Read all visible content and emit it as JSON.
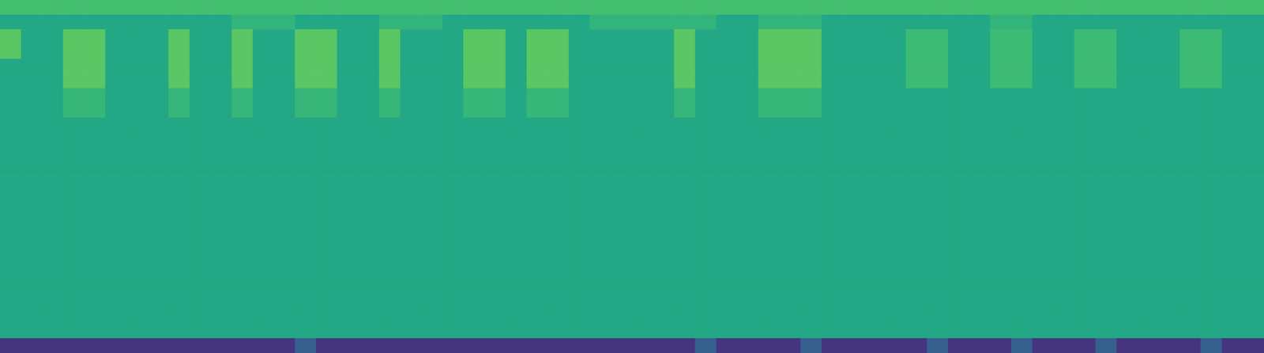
{
  "chart_data": {
    "type": "heatmap",
    "tick_labels": false,
    "zlim": [
      0,
      1
    ],
    "z": [
      [
        0.7,
        0.7,
        0.7,
        0.7,
        0.7,
        0.7,
        0.7,
        0.7,
        0.7,
        0.7,
        0.7,
        0.7,
        0.7,
        0.7,
        0.7,
        0.7,
        0.7,
        0.7,
        0.7,
        0.7,
        0.7,
        0.7,
        0.7,
        0.7,
        0.7,
        0.7,
        0.7,
        0.7,
        0.7,
        0.7,
        0.7,
        0.7,
        0.7,
        0.7,
        0.7,
        0.7,
        0.7,
        0.7,
        0.7,
        0.7,
        0.7,
        0.7,
        0.7,
        0.7,
        0.7,
        0.7,
        0.7,
        0.7,
        0.7,
        0.7,
        0.7,
        0.7,
        0.7,
        0.7,
        0.7,
        0.7,
        0.7,
        0.7,
        0.7,
        0.7
      ],
      [
        0.6,
        0.6,
        0.6,
        0.6,
        0.6,
        0.6,
        0.6,
        0.6,
        0.6,
        0.6,
        0.6,
        0.65,
        0.65,
        0.65,
        0.6,
        0.6,
        0.6,
        0.6,
        0.65,
        0.65,
        0.65,
        0.6,
        0.6,
        0.6,
        0.6,
        0.6,
        0.6,
        0.6,
        0.65,
        0.65,
        0.65,
        0.65,
        0.65,
        0.65,
        0.6,
        0.6,
        0.65,
        0.65,
        0.65,
        0.6,
        0.6,
        0.6,
        0.6,
        0.6,
        0.6,
        0.6,
        0.6,
        0.65,
        0.65,
        0.6,
        0.6,
        0.6,
        0.6,
        0.6,
        0.6,
        0.6,
        0.6,
        0.6,
        0.6,
        0.6
      ],
      [
        0.74,
        0.6,
        0.6,
        0.74,
        0.74,
        0.6,
        0.6,
        0.6,
        0.74,
        0.6,
        0.6,
        0.74,
        0.6,
        0.6,
        0.74,
        0.74,
        0.6,
        0.6,
        0.74,
        0.6,
        0.6,
        0.6,
        0.74,
        0.74,
        0.6,
        0.74,
        0.74,
        0.6,
        0.6,
        0.6,
        0.6,
        0.6,
        0.74,
        0.6,
        0.6,
        0.6,
        0.74,
        0.74,
        0.74,
        0.6,
        0.6,
        0.6,
        0.6,
        0.68,
        0.68,
        0.6,
        0.6,
        0.68,
        0.68,
        0.6,
        0.6,
        0.68,
        0.68,
        0.6,
        0.6,
        0.6,
        0.68,
        0.68,
        0.6,
        0.6
      ],
      [
        0.74,
        0.6,
        0.6,
        0.74,
        0.74,
        0.6,
        0.6,
        0.6,
        0.74,
        0.6,
        0.6,
        0.74,
        0.6,
        0.6,
        0.74,
        0.74,
        0.6,
        0.6,
        0.74,
        0.6,
        0.6,
        0.6,
        0.74,
        0.74,
        0.6,
        0.74,
        0.74,
        0.6,
        0.6,
        0.6,
        0.6,
        0.6,
        0.74,
        0.6,
        0.6,
        0.6,
        0.74,
        0.74,
        0.74,
        0.6,
        0.6,
        0.6,
        0.6,
        0.68,
        0.68,
        0.6,
        0.6,
        0.68,
        0.68,
        0.6,
        0.6,
        0.68,
        0.68,
        0.6,
        0.6,
        0.6,
        0.68,
        0.68,
        0.6,
        0.6
      ],
      [
        0.6,
        0.6,
        0.6,
        0.74,
        0.74,
        0.6,
        0.6,
        0.6,
        0.74,
        0.6,
        0.6,
        0.74,
        0.6,
        0.6,
        0.74,
        0.74,
        0.6,
        0.6,
        0.74,
        0.6,
        0.6,
        0.6,
        0.74,
        0.74,
        0.6,
        0.74,
        0.74,
        0.6,
        0.6,
        0.6,
        0.6,
        0.6,
        0.74,
        0.6,
        0.6,
        0.6,
        0.74,
        0.74,
        0.74,
        0.6,
        0.6,
        0.6,
        0.6,
        0.68,
        0.68,
        0.6,
        0.6,
        0.68,
        0.68,
        0.6,
        0.6,
        0.68,
        0.68,
        0.6,
        0.6,
        0.6,
        0.68,
        0.68,
        0.6,
        0.6
      ],
      [
        0.6,
        0.6,
        0.6,
        0.74,
        0.74,
        0.6,
        0.6,
        0.6,
        0.74,
        0.6,
        0.6,
        0.74,
        0.6,
        0.6,
        0.74,
        0.74,
        0.6,
        0.6,
        0.74,
        0.6,
        0.6,
        0.6,
        0.74,
        0.74,
        0.6,
        0.74,
        0.74,
        0.6,
        0.6,
        0.6,
        0.6,
        0.6,
        0.74,
        0.6,
        0.6,
        0.6,
        0.74,
        0.74,
        0.74,
        0.6,
        0.6,
        0.6,
        0.6,
        0.68,
        0.68,
        0.6,
        0.6,
        0.68,
        0.68,
        0.6,
        0.6,
        0.68,
        0.68,
        0.6,
        0.6,
        0.6,
        0.68,
        0.68,
        0.6,
        0.6
      ],
      [
        0.6,
        0.6,
        0.6,
        0.66,
        0.66,
        0.6,
        0.6,
        0.6,
        0.66,
        0.6,
        0.6,
        0.66,
        0.6,
        0.6,
        0.66,
        0.66,
        0.6,
        0.6,
        0.66,
        0.6,
        0.6,
        0.6,
        0.66,
        0.66,
        0.6,
        0.66,
        0.66,
        0.6,
        0.6,
        0.6,
        0.6,
        0.6,
        0.66,
        0.6,
        0.6,
        0.6,
        0.66,
        0.66,
        0.66,
        0.6,
        0.6,
        0.6,
        0.6,
        0.6,
        0.6,
        0.6,
        0.6,
        0.6,
        0.6,
        0.6,
        0.6,
        0.6,
        0.6,
        0.6,
        0.6,
        0.6,
        0.6,
        0.6,
        0.6,
        0.6
      ],
      [
        0.6,
        0.6,
        0.6,
        0.66,
        0.66,
        0.6,
        0.6,
        0.6,
        0.66,
        0.6,
        0.6,
        0.66,
        0.6,
        0.6,
        0.66,
        0.66,
        0.6,
        0.6,
        0.66,
        0.6,
        0.6,
        0.6,
        0.66,
        0.66,
        0.6,
        0.66,
        0.66,
        0.6,
        0.6,
        0.6,
        0.6,
        0.6,
        0.66,
        0.6,
        0.6,
        0.6,
        0.66,
        0.66,
        0.66,
        0.6,
        0.6,
        0.6,
        0.6,
        0.6,
        0.6,
        0.6,
        0.6,
        0.6,
        0.6,
        0.6,
        0.6,
        0.6,
        0.6,
        0.6,
        0.6,
        0.6,
        0.6,
        0.6,
        0.6,
        0.6
      ],
      [
        0.6,
        0.6,
        0.6,
        0.6,
        0.6,
        0.6,
        0.6,
        0.6,
        0.6,
        0.6,
        0.6,
        0.6,
        0.6,
        0.6,
        0.6,
        0.6,
        0.6,
        0.6,
        0.6,
        0.6,
        0.6,
        0.6,
        0.6,
        0.6,
        0.6,
        0.6,
        0.6,
        0.6,
        0.6,
        0.6,
        0.6,
        0.6,
        0.6,
        0.6,
        0.6,
        0.6,
        0.6,
        0.6,
        0.6,
        0.6,
        0.6,
        0.6,
        0.6,
        0.6,
        0.6,
        0.6,
        0.6,
        0.6,
        0.6,
        0.6,
        0.6,
        0.6,
        0.6,
        0.6,
        0.6,
        0.6,
        0.6,
        0.6,
        0.6,
        0.6
      ],
      [
        0.6,
        0.6,
        0.6,
        0.6,
        0.6,
        0.6,
        0.6,
        0.6,
        0.6,
        0.6,
        0.6,
        0.6,
        0.6,
        0.6,
        0.6,
        0.6,
        0.6,
        0.6,
        0.6,
        0.6,
        0.6,
        0.6,
        0.6,
        0.6,
        0.6,
        0.6,
        0.6,
        0.6,
        0.6,
        0.6,
        0.6,
        0.6,
        0.6,
        0.6,
        0.6,
        0.6,
        0.6,
        0.6,
        0.6,
        0.6,
        0.6,
        0.6,
        0.6,
        0.6,
        0.6,
        0.6,
        0.6,
        0.6,
        0.6,
        0.6,
        0.6,
        0.6,
        0.6,
        0.6,
        0.6,
        0.6,
        0.6,
        0.6,
        0.6,
        0.6
      ],
      [
        0.6,
        0.6,
        0.6,
        0.6,
        0.6,
        0.6,
        0.6,
        0.6,
        0.6,
        0.6,
        0.6,
        0.6,
        0.6,
        0.6,
        0.6,
        0.6,
        0.6,
        0.6,
        0.6,
        0.6,
        0.6,
        0.6,
        0.6,
        0.6,
        0.6,
        0.6,
        0.6,
        0.6,
        0.6,
        0.6,
        0.6,
        0.6,
        0.6,
        0.6,
        0.6,
        0.6,
        0.6,
        0.6,
        0.6,
        0.6,
        0.6,
        0.6,
        0.6,
        0.6,
        0.6,
        0.6,
        0.6,
        0.6,
        0.6,
        0.6,
        0.6,
        0.6,
        0.6,
        0.6,
        0.6,
        0.6,
        0.6,
        0.6,
        0.6,
        0.6
      ],
      [
        0.6,
        0.6,
        0.6,
        0.6,
        0.6,
        0.6,
        0.6,
        0.6,
        0.6,
        0.6,
        0.6,
        0.6,
        0.6,
        0.6,
        0.6,
        0.6,
        0.6,
        0.6,
        0.6,
        0.6,
        0.6,
        0.6,
        0.6,
        0.6,
        0.6,
        0.6,
        0.6,
        0.6,
        0.6,
        0.6,
        0.6,
        0.6,
        0.6,
        0.6,
        0.6,
        0.6,
        0.6,
        0.6,
        0.6,
        0.6,
        0.6,
        0.6,
        0.6,
        0.6,
        0.6,
        0.6,
        0.6,
        0.6,
        0.6,
        0.6,
        0.6,
        0.6,
        0.6,
        0.6,
        0.6,
        0.6,
        0.6,
        0.6,
        0.6,
        0.6
      ],
      [
        0.6,
        0.6,
        0.6,
        0.6,
        0.6,
        0.6,
        0.6,
        0.6,
        0.6,
        0.6,
        0.6,
        0.6,
        0.6,
        0.6,
        0.6,
        0.6,
        0.6,
        0.6,
        0.6,
        0.6,
        0.6,
        0.6,
        0.6,
        0.6,
        0.6,
        0.6,
        0.6,
        0.6,
        0.6,
        0.6,
        0.6,
        0.6,
        0.6,
        0.6,
        0.6,
        0.6,
        0.6,
        0.6,
        0.6,
        0.6,
        0.6,
        0.6,
        0.6,
        0.6,
        0.6,
        0.6,
        0.6,
        0.6,
        0.6,
        0.6,
        0.6,
        0.6,
        0.6,
        0.6,
        0.6,
        0.6,
        0.6,
        0.6,
        0.6,
        0.6
      ],
      [
        0.6,
        0.6,
        0.6,
        0.6,
        0.6,
        0.6,
        0.6,
        0.6,
        0.6,
        0.6,
        0.6,
        0.6,
        0.6,
        0.6,
        0.6,
        0.6,
        0.6,
        0.6,
        0.6,
        0.6,
        0.6,
        0.6,
        0.6,
        0.6,
        0.6,
        0.6,
        0.6,
        0.6,
        0.6,
        0.6,
        0.6,
        0.6,
        0.6,
        0.6,
        0.6,
        0.6,
        0.6,
        0.6,
        0.6,
        0.6,
        0.6,
        0.6,
        0.6,
        0.6,
        0.6,
        0.6,
        0.6,
        0.6,
        0.6,
        0.6,
        0.6,
        0.6,
        0.6,
        0.6,
        0.6,
        0.6,
        0.6,
        0.6,
        0.6,
        0.6
      ],
      [
        0.6,
        0.6,
        0.6,
        0.6,
        0.6,
        0.6,
        0.6,
        0.6,
        0.6,
        0.6,
        0.6,
        0.6,
        0.6,
        0.6,
        0.6,
        0.6,
        0.6,
        0.6,
        0.6,
        0.6,
        0.6,
        0.6,
        0.6,
        0.6,
        0.6,
        0.6,
        0.6,
        0.6,
        0.6,
        0.6,
        0.6,
        0.6,
        0.6,
        0.6,
        0.6,
        0.6,
        0.6,
        0.6,
        0.6,
        0.6,
        0.6,
        0.6,
        0.6,
        0.6,
        0.6,
        0.6,
        0.6,
        0.6,
        0.6,
        0.6,
        0.6,
        0.6,
        0.6,
        0.6,
        0.6,
        0.6,
        0.6,
        0.6,
        0.6,
        0.6
      ],
      [
        0.6,
        0.6,
        0.6,
        0.6,
        0.6,
        0.6,
        0.6,
        0.6,
        0.6,
        0.6,
        0.6,
        0.6,
        0.6,
        0.6,
        0.6,
        0.6,
        0.6,
        0.6,
        0.6,
        0.6,
        0.6,
        0.6,
        0.6,
        0.6,
        0.6,
        0.6,
        0.6,
        0.6,
        0.6,
        0.6,
        0.6,
        0.6,
        0.6,
        0.6,
        0.6,
        0.6,
        0.6,
        0.6,
        0.6,
        0.6,
        0.6,
        0.6,
        0.6,
        0.6,
        0.6,
        0.6,
        0.6,
        0.6,
        0.6,
        0.6,
        0.6,
        0.6,
        0.6,
        0.6,
        0.6,
        0.6,
        0.6,
        0.6,
        0.6,
        0.6
      ],
      [
        0.6,
        0.6,
        0.6,
        0.6,
        0.6,
        0.6,
        0.6,
        0.6,
        0.6,
        0.6,
        0.6,
        0.6,
        0.6,
        0.6,
        0.6,
        0.6,
        0.6,
        0.6,
        0.6,
        0.6,
        0.6,
        0.6,
        0.6,
        0.6,
        0.6,
        0.6,
        0.6,
        0.6,
        0.6,
        0.6,
        0.6,
        0.6,
        0.6,
        0.6,
        0.6,
        0.6,
        0.6,
        0.6,
        0.6,
        0.6,
        0.6,
        0.6,
        0.6,
        0.6,
        0.6,
        0.6,
        0.6,
        0.6,
        0.6,
        0.6,
        0.6,
        0.6,
        0.6,
        0.6,
        0.6,
        0.6,
        0.6,
        0.6,
        0.6,
        0.6
      ],
      [
        0.6,
        0.6,
        0.6,
        0.6,
        0.6,
        0.6,
        0.6,
        0.6,
        0.6,
        0.6,
        0.6,
        0.6,
        0.6,
        0.6,
        0.6,
        0.6,
        0.6,
        0.6,
        0.6,
        0.6,
        0.6,
        0.6,
        0.6,
        0.6,
        0.6,
        0.6,
        0.6,
        0.6,
        0.6,
        0.6,
        0.6,
        0.6,
        0.6,
        0.6,
        0.6,
        0.6,
        0.6,
        0.6,
        0.6,
        0.6,
        0.6,
        0.6,
        0.6,
        0.6,
        0.6,
        0.6,
        0.6,
        0.6,
        0.6,
        0.6,
        0.6,
        0.6,
        0.6,
        0.6,
        0.6,
        0.6,
        0.6,
        0.6,
        0.6,
        0.6
      ],
      [
        0.6,
        0.6,
        0.6,
        0.6,
        0.6,
        0.6,
        0.6,
        0.6,
        0.6,
        0.6,
        0.6,
        0.6,
        0.6,
        0.6,
        0.6,
        0.6,
        0.6,
        0.6,
        0.6,
        0.6,
        0.6,
        0.6,
        0.6,
        0.6,
        0.6,
        0.6,
        0.6,
        0.6,
        0.6,
        0.6,
        0.6,
        0.6,
        0.6,
        0.6,
        0.6,
        0.6,
        0.6,
        0.6,
        0.6,
        0.6,
        0.6,
        0.6,
        0.6,
        0.6,
        0.6,
        0.6,
        0.6,
        0.6,
        0.6,
        0.6,
        0.6,
        0.6,
        0.6,
        0.6,
        0.6,
        0.6,
        0.6,
        0.6,
        0.6,
        0.6
      ],
      [
        0.6,
        0.6,
        0.6,
        0.6,
        0.6,
        0.6,
        0.6,
        0.6,
        0.6,
        0.6,
        0.6,
        0.6,
        0.6,
        0.6,
        0.6,
        0.6,
        0.6,
        0.6,
        0.6,
        0.6,
        0.6,
        0.6,
        0.6,
        0.6,
        0.6,
        0.6,
        0.6,
        0.6,
        0.6,
        0.6,
        0.6,
        0.6,
        0.6,
        0.6,
        0.6,
        0.6,
        0.6,
        0.6,
        0.6,
        0.6,
        0.6,
        0.6,
        0.6,
        0.6,
        0.6,
        0.6,
        0.6,
        0.6,
        0.6,
        0.6,
        0.6,
        0.6,
        0.6,
        0.6,
        0.6,
        0.6,
        0.6,
        0.6,
        0.6,
        0.6
      ],
      [
        0.6,
        0.6,
        0.6,
        0.6,
        0.6,
        0.6,
        0.6,
        0.6,
        0.6,
        0.6,
        0.6,
        0.6,
        0.6,
        0.6,
        0.6,
        0.6,
        0.6,
        0.6,
        0.6,
        0.6,
        0.6,
        0.6,
        0.6,
        0.6,
        0.6,
        0.6,
        0.6,
        0.6,
        0.6,
        0.6,
        0.6,
        0.6,
        0.6,
        0.6,
        0.6,
        0.6,
        0.6,
        0.6,
        0.6,
        0.6,
        0.6,
        0.6,
        0.6,
        0.6,
        0.6,
        0.6,
        0.6,
        0.6,
        0.6,
        0.6,
        0.6,
        0.6,
        0.6,
        0.6,
        0.6,
        0.6,
        0.6,
        0.6,
        0.6,
        0.6
      ],
      [
        0.6,
        0.6,
        0.6,
        0.6,
        0.6,
        0.6,
        0.6,
        0.6,
        0.6,
        0.6,
        0.6,
        0.6,
        0.6,
        0.6,
        0.6,
        0.6,
        0.6,
        0.6,
        0.6,
        0.6,
        0.6,
        0.6,
        0.6,
        0.6,
        0.6,
        0.6,
        0.6,
        0.6,
        0.6,
        0.6,
        0.6,
        0.6,
        0.6,
        0.6,
        0.6,
        0.6,
        0.6,
        0.6,
        0.6,
        0.6,
        0.6,
        0.6,
        0.6,
        0.6,
        0.6,
        0.6,
        0.6,
        0.6,
        0.6,
        0.6,
        0.6,
        0.6,
        0.6,
        0.6,
        0.6,
        0.6,
        0.6,
        0.6,
        0.6,
        0.6
      ],
      [
        0.6,
        0.6,
        0.6,
        0.6,
        0.6,
        0.6,
        0.6,
        0.6,
        0.6,
        0.6,
        0.6,
        0.6,
        0.6,
        0.6,
        0.6,
        0.6,
        0.6,
        0.6,
        0.6,
        0.6,
        0.6,
        0.6,
        0.6,
        0.6,
        0.6,
        0.6,
        0.6,
        0.6,
        0.6,
        0.6,
        0.6,
        0.6,
        0.6,
        0.6,
        0.6,
        0.6,
        0.6,
        0.6,
        0.6,
        0.6,
        0.6,
        0.6,
        0.6,
        0.6,
        0.6,
        0.6,
        0.6,
        0.6,
        0.6,
        0.6,
        0.6,
        0.6,
        0.6,
        0.6,
        0.6,
        0.6,
        0.6,
        0.6,
        0.6,
        0.6
      ],
      [
        0.15,
        0.15,
        0.15,
        0.15,
        0.15,
        0.15,
        0.15,
        0.15,
        0.15,
        0.15,
        0.15,
        0.15,
        0.15,
        0.15,
        0.3,
        0.15,
        0.15,
        0.15,
        0.15,
        0.15,
        0.15,
        0.15,
        0.15,
        0.15,
        0.15,
        0.15,
        0.15,
        0.15,
        0.15,
        0.15,
        0.15,
        0.15,
        0.15,
        0.3,
        0.15,
        0.15,
        0.15,
        0.15,
        0.3,
        0.15,
        0.15,
        0.15,
        0.15,
        0.15,
        0.3,
        0.15,
        0.15,
        0.15,
        0.3,
        0.15,
        0.15,
        0.15,
        0.3,
        0.15,
        0.15,
        0.15,
        0.15,
        0.3,
        0.15,
        0.15
      ]
    ]
  }
}
